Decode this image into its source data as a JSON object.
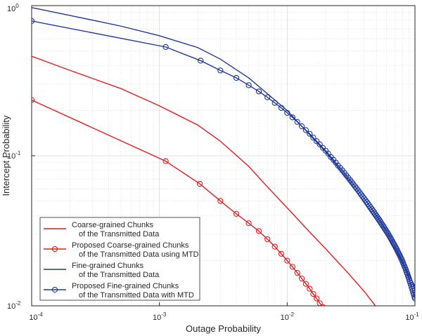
{
  "chart_data": {
    "type": "line",
    "xscale": "log",
    "yscale": "log",
    "xlim": [
      0.0001,
      0.1
    ],
    "ylim": [
      0.01,
      1
    ],
    "xlabel": "Outage Probability",
    "ylabel": "Intercept Probability",
    "grid": true,
    "legend_position": "bottom-left",
    "x_ticks": [
      {
        "base": "10",
        "exp": "-4",
        "value": 0.0001
      },
      {
        "base": "10",
        "exp": "-3",
        "value": 0.001
      },
      {
        "base": "10",
        "exp": "-2",
        "value": 0.01
      },
      {
        "base": "10",
        "exp": "-1",
        "value": 0.1
      }
    ],
    "y_ticks": [
      {
        "base": "10",
        "exp": "-2",
        "value": 0.01
      },
      {
        "base": "10",
        "exp": "-1",
        "value": 0.1
      },
      {
        "base": "10",
        "exp": "0",
        "value": 1
      }
    ],
    "series": [
      {
        "name_line1": "Coarse-grained Chunks",
        "name_line2": "of the Transmitted Data",
        "color": "#e8191b",
        "marker": "none",
        "points": [
          [
            0.0001,
            0.46
          ],
          [
            0.0002,
            0.37
          ],
          [
            0.0005,
            0.28
          ],
          [
            0.001,
            0.215
          ],
          [
            0.002,
            0.16
          ],
          [
            0.003,
            0.125
          ],
          [
            0.005,
            0.085
          ],
          [
            0.007,
            0.062
          ],
          [
            0.01,
            0.045
          ],
          [
            0.015,
            0.031
          ],
          [
            0.02,
            0.024
          ],
          [
            0.03,
            0.0165
          ],
          [
            0.04,
            0.0125
          ],
          [
            0.05,
            0.0098
          ]
        ]
      },
      {
        "name_line1": "Proposed Coarse-grained Chunks",
        "name_line2": "of the Transmitted Data using MTD",
        "color": "#e8191b",
        "marker": "circle",
        "points": [
          [
            0.0001,
            0.235
          ],
          [
            0.00112,
            0.092
          ],
          [
            0.00207,
            0.065
          ],
          [
            0.003,
            0.05
          ],
          [
            0.004,
            0.041
          ],
          [
            0.005,
            0.0355
          ],
          [
            0.006,
            0.0315
          ],
          [
            0.007,
            0.0278
          ],
          [
            0.008,
            0.0248
          ],
          [
            0.009,
            0.0222
          ],
          [
            0.01,
            0.02
          ],
          [
            0.011,
            0.0182
          ],
          [
            0.012,
            0.0166
          ],
          [
            0.013,
            0.0152
          ],
          [
            0.014,
            0.014
          ],
          [
            0.015,
            0.013
          ],
          [
            0.016,
            0.012
          ],
          [
            0.017,
            0.0112
          ],
          [
            0.018,
            0.0104
          ],
          [
            0.019,
            0.0098
          ]
        ]
      },
      {
        "name_line1": "Fine-grained Chunks",
        "name_line2": "of the Transmitted Data",
        "color": "#1f3898",
        "marker": "none",
        "points": [
          [
            0.0001,
            0.97
          ],
          [
            0.0002,
            0.86
          ],
          [
            0.0005,
            0.73
          ],
          [
            0.001,
            0.63
          ],
          [
            0.002,
            0.525
          ],
          [
            0.003,
            0.44
          ],
          [
            0.005,
            0.33
          ],
          [
            0.01,
            0.2
          ],
          [
            0.02,
            0.106
          ],
          [
            0.03,
            0.069
          ],
          [
            0.05,
            0.037
          ],
          [
            0.07,
            0.024
          ],
          [
            0.1,
            0.0135
          ]
        ]
      },
      {
        "name_line1": "Proposed Fine-grained Chunks",
        "name_line2": "of the Transmitted Data with MTD",
        "color": "#1f3898",
        "marker": "circle",
        "points": [
          [
            0.0001,
            0.79
          ],
          [
            0.00112,
            0.53
          ],
          [
            0.0021,
            0.43
          ],
          [
            0.003,
            0.37
          ],
          [
            0.004,
            0.33
          ],
          [
            0.005,
            0.295
          ],
          [
            0.006,
            0.268
          ],
          [
            0.007,
            0.245
          ],
          [
            0.008,
            0.225
          ],
          [
            0.009,
            0.208
          ],
          [
            0.01,
            0.193
          ],
          [
            0.011,
            0.18
          ],
          [
            0.012,
            0.168
          ],
          [
            0.013,
            0.157
          ],
          [
            0.014,
            0.148
          ],
          [
            0.015,
            0.14
          ],
          [
            0.016,
            0.132
          ],
          [
            0.017,
            0.125
          ],
          [
            0.018,
            0.119
          ],
          [
            0.019,
            0.113
          ],
          [
            0.02,
            0.108
          ],
          [
            0.021,
            0.103
          ],
          [
            0.022,
            0.098
          ],
          [
            0.023,
            0.094
          ],
          [
            0.024,
            0.09
          ],
          [
            0.025,
            0.086
          ],
          [
            0.026,
            0.083
          ],
          [
            0.027,
            0.08
          ],
          [
            0.028,
            0.077
          ],
          [
            0.029,
            0.074
          ],
          [
            0.03,
            0.0715
          ],
          [
            0.031,
            0.069
          ],
          [
            0.032,
            0.0667
          ],
          [
            0.033,
            0.0645
          ],
          [
            0.034,
            0.0624
          ],
          [
            0.035,
            0.0605
          ],
          [
            0.036,
            0.0586
          ],
          [
            0.037,
            0.0568
          ],
          [
            0.038,
            0.0551
          ],
          [
            0.039,
            0.0535
          ],
          [
            0.04,
            0.052
          ],
          [
            0.041,
            0.0505
          ],
          [
            0.042,
            0.0491
          ],
          [
            0.043,
            0.0478
          ],
          [
            0.044,
            0.0465
          ],
          [
            0.045,
            0.0453
          ],
          [
            0.046,
            0.0441
          ],
          [
            0.047,
            0.043
          ],
          [
            0.048,
            0.0419
          ],
          [
            0.049,
            0.0408
          ],
          [
            0.05,
            0.0398
          ],
          [
            0.051,
            0.0388
          ],
          [
            0.052,
            0.0379
          ],
          [
            0.053,
            0.037
          ],
          [
            0.054,
            0.0361
          ],
          [
            0.055,
            0.0352
          ],
          [
            0.056,
            0.0344
          ],
          [
            0.057,
            0.0336
          ],
          [
            0.058,
            0.0328
          ],
          [
            0.059,
            0.032
          ],
          [
            0.06,
            0.0313
          ],
          [
            0.061,
            0.0306
          ],
          [
            0.062,
            0.0299
          ],
          [
            0.063,
            0.0292
          ],
          [
            0.064,
            0.0285
          ],
          [
            0.065,
            0.0279
          ],
          [
            0.066,
            0.0273
          ],
          [
            0.067,
            0.0266
          ],
          [
            0.068,
            0.026
          ],
          [
            0.069,
            0.0255
          ],
          [
            0.07,
            0.0249
          ],
          [
            0.071,
            0.0243
          ],
          [
            0.072,
            0.0238
          ],
          [
            0.073,
            0.0232
          ],
          [
            0.074,
            0.0227
          ],
          [
            0.075,
            0.0222
          ],
          [
            0.076,
            0.0217
          ],
          [
            0.077,
            0.0212
          ],
          [
            0.078,
            0.0207
          ],
          [
            0.079,
            0.0202
          ],
          [
            0.08,
            0.0197
          ],
          [
            0.081,
            0.0192
          ],
          [
            0.082,
            0.0187
          ],
          [
            0.083,
            0.0182
          ],
          [
            0.084,
            0.0178
          ],
          [
            0.085,
            0.0173
          ],
          [
            0.086,
            0.0168
          ],
          [
            0.087,
            0.0164
          ],
          [
            0.088,
            0.0159
          ],
          [
            0.089,
            0.0155
          ],
          [
            0.09,
            0.0151
          ],
          [
            0.091,
            0.0146
          ],
          [
            0.092,
            0.0142
          ],
          [
            0.093,
            0.0138
          ],
          [
            0.094,
            0.0134
          ],
          [
            0.095,
            0.013
          ],
          [
            0.096,
            0.0126
          ],
          [
            0.097,
            0.0122
          ],
          [
            0.098,
            0.0119
          ],
          [
            0.099,
            0.0115
          ],
          [
            0.1,
            0.0112
          ]
        ]
      }
    ]
  }
}
